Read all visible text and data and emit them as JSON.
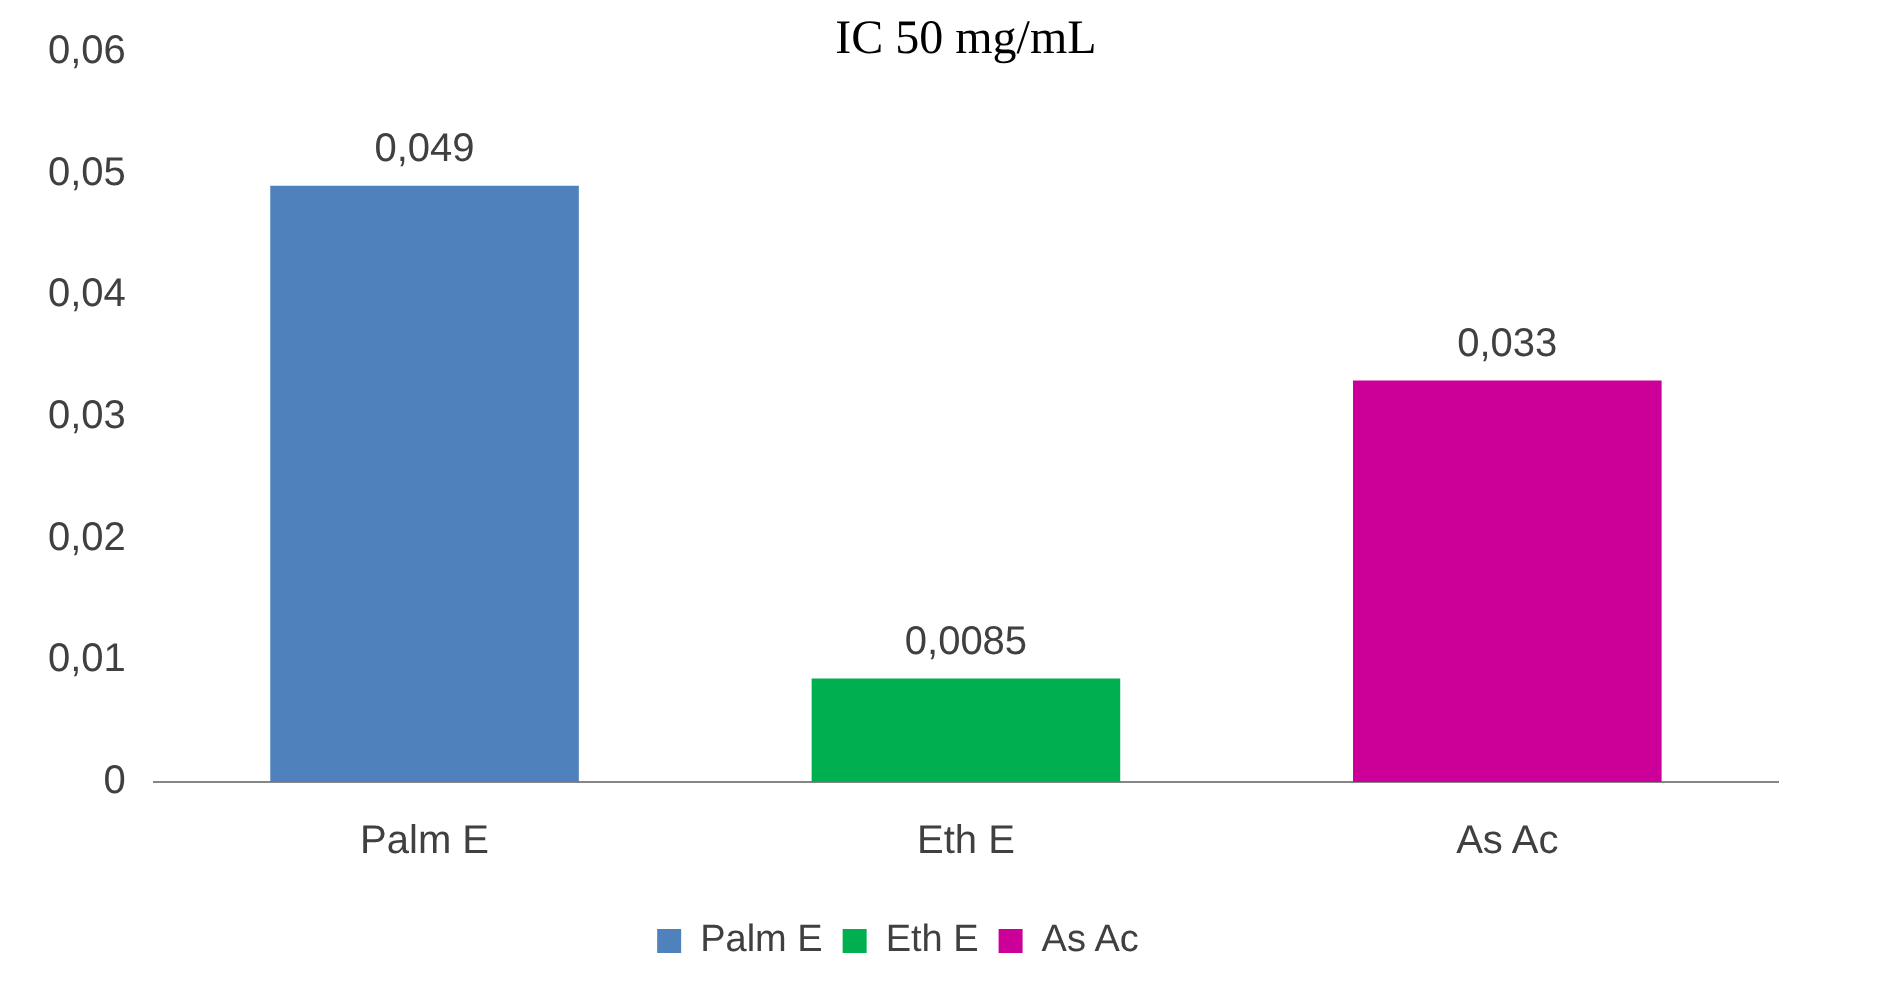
{
  "chart_data": {
    "type": "bar",
    "title": "IC 50 mg/mL",
    "categories": [
      "Palm E",
      "Eth E",
      "As Ac"
    ],
    "series": [
      {
        "name": "Palm E",
        "color": "#4f81bd",
        "values": [
          0.049,
          null,
          null
        ],
        "value_labels": [
          "0,049",
          null,
          null
        ]
      },
      {
        "name": "Eth E",
        "color": "#00b050",
        "values": [
          null,
          0.0085,
          null
        ],
        "value_labels": [
          null,
          "0,0085",
          null
        ]
      },
      {
        "name": "As Ac",
        "color": "#cc0099",
        "values": [
          null,
          null,
          0.033
        ],
        "value_labels": [
          null,
          null,
          "0,033"
        ]
      }
    ],
    "ylim": [
      0,
      0.06
    ],
    "yticks": [
      0,
      {
        "value": 0.01,
        "label": "0,01"
      },
      {
        "value": 0.02,
        "label": "0,02"
      },
      {
        "value": 0.03,
        "label": "0,03"
      },
      {
        "value": 0.04,
        "label": "0,04"
      },
      {
        "value": 0.05,
        "label": "0,05"
      },
      {
        "value": 0.06,
        "label": "0,06"
      }
    ],
    "grid": false,
    "legend": "bottom"
  }
}
